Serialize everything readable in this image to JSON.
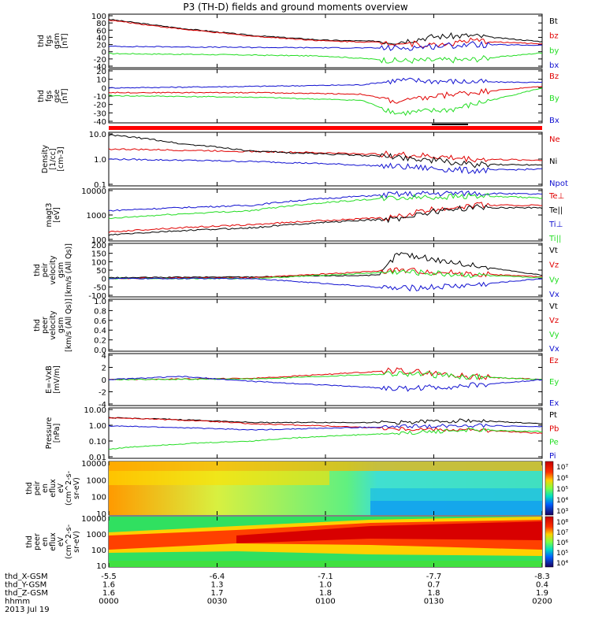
{
  "title": "P3 (TH-D) fields and ground moments overview",
  "colors": {
    "black": "#000000",
    "red": "#e00000",
    "green": "#22dd22",
    "blue": "#1010d0"
  },
  "panels": [
    {
      "id": "fgs-gsm",
      "ylabel": [
        "thd",
        "fgs",
        "gsm",
        "[nT]"
      ],
      "yticks": [
        "100",
        "80",
        "60",
        "40",
        "20",
        "0",
        "-20",
        "-40"
      ],
      "ymin": -40,
      "ymax": 100,
      "legend": [
        {
          "label": "Bt",
          "color": "black"
        },
        {
          "label": "bz",
          "color": "red"
        },
        {
          "label": "by",
          "color": "green"
        },
        {
          "label": "bx",
          "color": "blue"
        }
      ]
    },
    {
      "id": "fgs-gse",
      "ylabel": [
        "thd",
        "fgs",
        "gse",
        "[nT]"
      ],
      "yticks": [
        "20",
        "10",
        "0",
        "-10",
        "-20",
        "-30",
        "-40"
      ],
      "ymin": -45,
      "ymax": 20,
      "legend": [
        {
          "label": "Bz",
          "color": "red"
        },
        {
          "label": "By",
          "color": "green"
        },
        {
          "label": "Bx",
          "color": "blue"
        }
      ]
    },
    {
      "id": "density",
      "ylabel": [
        "Density",
        "[1/cc]",
        "[cm-3]"
      ],
      "yticks": [
        "10.0",
        "1.0",
        "0.1"
      ],
      "log": true,
      "ymin": 0.1,
      "ymax": 10,
      "legend": [
        {
          "label": "Ne",
          "color": "red"
        },
        {
          "label": "Ni",
          "color": "black"
        },
        {
          "label": "Npot",
          "color": "blue"
        }
      ]
    },
    {
      "id": "temperature",
      "ylabel": [
        "magt3",
        "[eV]"
      ],
      "yticks": [
        "10000",
        "1000",
        "100"
      ],
      "log": true,
      "ymin": 100,
      "ymax": 10000,
      "legend": [
        {
          "label": "Te⊥",
          "color": "red"
        },
        {
          "label": "Te||",
          "color": "black"
        },
        {
          "label": "Ti⊥",
          "color": "blue"
        },
        {
          "label": "Ti||",
          "color": "green"
        }
      ]
    },
    {
      "id": "peir-velocity",
      "ylabel": [
        "thd",
        "peir",
        "velocity",
        "gsm",
        "[km/s (All Qs)]"
      ],
      "yticks": [
        "200",
        "150",
        "100",
        "50",
        "0",
        "-50",
        "-100"
      ],
      "ymin": -100,
      "ymax": 200,
      "legend": [
        {
          "label": "Vt",
          "color": "black"
        },
        {
          "label": "Vz",
          "color": "red"
        },
        {
          "label": "Vy",
          "color": "green"
        },
        {
          "label": "Vx",
          "color": "blue"
        }
      ]
    },
    {
      "id": "peer-velocity",
      "ylabel": [
        "thd",
        "peer",
        "velocity",
        "gsm",
        "[km/s (All Qs)]"
      ],
      "yticks": [
        "1.0",
        "0.8",
        "0.6",
        "0.4",
        "0.2",
        "0.0"
      ],
      "ymin": 0,
      "ymax": 1,
      "legend": [
        {
          "label": "Vt",
          "color": "black"
        },
        {
          "label": "Vz",
          "color": "red"
        },
        {
          "label": "Vy",
          "color": "green"
        },
        {
          "label": "Vx",
          "color": "blue"
        }
      ]
    },
    {
      "id": "efield",
      "ylabel": [
        "E=-VxB",
        "[mV/m]"
      ],
      "yticks": [
        "4",
        "2",
        "0",
        "-2",
        "-4"
      ],
      "ymin": -4,
      "ymax": 4,
      "legend": [
        {
          "label": "Ez",
          "color": "red"
        },
        {
          "label": "Ey",
          "color": "green"
        },
        {
          "label": "Ex",
          "color": "blue"
        }
      ]
    },
    {
      "id": "pressure",
      "ylabel": [
        "Pressure",
        "[nPa]"
      ],
      "yticks": [
        "10.00",
        "1.00",
        "0.10",
        "0.01"
      ],
      "log": true,
      "ymin": 0.01,
      "ymax": 10,
      "legend": [
        {
          "label": "Pt",
          "color": "black"
        },
        {
          "label": "Pb",
          "color": "red"
        },
        {
          "label": "Pe",
          "color": "green"
        },
        {
          "label": "Pi",
          "color": "blue"
        }
      ]
    },
    {
      "id": "peir-spectrogram",
      "ylabel": [
        "thd",
        "peir",
        "en",
        "eflux",
        "eV",
        "(cm^2-s-",
        "sr-eV)"
      ],
      "yticks": [
        "10000",
        "1000",
        "100",
        "10"
      ],
      "cbar_ticks": [
        "10⁷",
        "10⁶",
        "10⁵",
        "10⁴",
        "10³"
      ]
    },
    {
      "id": "peer-spectrogram",
      "ylabel": [
        "thd",
        "peer",
        "en",
        "eflux",
        "eV",
        "(cm^2-s-",
        "sr-eV)"
      ],
      "yticks": [
        "10000",
        "1000",
        "100",
        "10"
      ],
      "cbar_ticks": [
        "10⁸",
        "10⁷",
        "10⁶",
        "10⁵",
        "10⁴"
      ]
    }
  ],
  "xaxis": {
    "rows": [
      {
        "label": "thd_X-GSM",
        "values": [
          "-5.5",
          "-6.4",
          "-7.1",
          "-7.7",
          "-8.3"
        ]
      },
      {
        "label": "thd_Y-GSM",
        "values": [
          "1.6",
          "1.3",
          "1.0",
          "0.7",
          "0.4"
        ]
      },
      {
        "label": "thd_Z-GSM",
        "values": [
          "1.6",
          "1.7",
          "1.8",
          "1.8",
          "1.9"
        ]
      },
      {
        "label": "hhmm",
        "values": [
          "0000",
          "0030",
          "0100",
          "0130",
          "0200"
        ]
      }
    ],
    "date": "2013 Jul 19"
  },
  "chart_data": {
    "type": "line",
    "title": "P3 (TH-D) fields and ground moments overview",
    "x_time_range": [
      "0000",
      "0200"
    ],
    "x_ticks": [
      "0000",
      "0030",
      "0100",
      "0130",
      "0200"
    ],
    "panels": [
      {
        "name": "thd fgs gsm [nT]",
        "ylim": [
          -40,
          100
        ],
        "series": [
          {
            "name": "Bt",
            "points": [
              [
                0,
                90
              ],
              [
                20,
                65
              ],
              [
                40,
                45
              ],
              [
                60,
                32
              ],
              [
                80,
                28
              ],
              [
                90,
                42
              ],
              [
                100,
                45
              ],
              [
                120,
                28
              ]
            ]
          },
          {
            "name": "bz",
            "points": [
              [
                0,
                88
              ],
              [
                20,
                63
              ],
              [
                40,
                43
              ],
              [
                60,
                30
              ],
              [
                80,
                25
              ],
              [
                90,
                18
              ],
              [
                100,
                30
              ],
              [
                120,
                22
              ]
            ]
          },
          {
            "name": "by",
            "points": [
              [
                0,
                -5
              ],
              [
                30,
                -8
              ],
              [
                60,
                -12
              ],
              [
                80,
                -25
              ],
              [
                100,
                -22
              ],
              [
                120,
                -3
              ]
            ]
          },
          {
            "name": "bx",
            "points": [
              [
                0,
                15
              ],
              [
                40,
                12
              ],
              [
                80,
                10
              ],
              [
                100,
                20
              ],
              [
                120,
                18
              ]
            ]
          }
        ]
      },
      {
        "name": "thd fgs gse [nT]",
        "ylim": [
          -45,
          20
        ],
        "series": [
          {
            "name": "Bz",
            "points": [
              [
                0,
                -8
              ],
              [
                40,
                -8
              ],
              [
                70,
                -10
              ],
              [
                80,
                -20
              ],
              [
                95,
                -10
              ],
              [
                120,
                0
              ]
            ]
          },
          {
            "name": "By",
            "points": [
              [
                0,
                -12
              ],
              [
                40,
                -14
              ],
              [
                70,
                -18
              ],
              [
                80,
                -35
              ],
              [
                95,
                -30
              ],
              [
                120,
                -2
              ]
            ]
          },
          {
            "name": "Bx",
            "points": [
              [
                0,
                -2
              ],
              [
                40,
                0
              ],
              [
                70,
                2
              ],
              [
                80,
                8
              ],
              [
                100,
                6
              ],
              [
                120,
                5
              ]
            ]
          }
        ]
      },
      {
        "name": "Density [1/cc]",
        "ylim": [
          0.1,
          10
        ],
        "series": [
          {
            "name": "Ne",
            "points": [
              [
                0,
                2.5
              ],
              [
                40,
                2.0
              ],
              [
                80,
                1.5
              ],
              [
                100,
                1.0
              ],
              [
                120,
                0.9
              ]
            ]
          },
          {
            "name": "Ni",
            "points": [
              [
                0,
                9
              ],
              [
                20,
                4
              ],
              [
                40,
                2
              ],
              [
                80,
                1.2
              ],
              [
                100,
                0.6
              ],
              [
                120,
                0.6
              ]
            ]
          },
          {
            "name": "Npot",
            "points": [
              [
                0,
                1.0
              ],
              [
                40,
                0.8
              ],
              [
                80,
                0.5
              ],
              [
                100,
                0.35
              ],
              [
                120,
                0.4
              ]
            ]
          }
        ]
      },
      {
        "name": "magt3 [eV]",
        "ylim": [
          100,
          10000
        ],
        "series": [
          {
            "name": "Te⊥",
            "points": [
              [
                0,
                200
              ],
              [
                40,
                400
              ],
              [
                80,
                800
              ],
              [
                100,
                2500
              ],
              [
                120,
                2500
              ]
            ]
          },
          {
            "name": "Te||",
            "points": [
              [
                0,
                150
              ],
              [
                40,
                300
              ],
              [
                80,
                700
              ],
              [
                100,
                2000
              ],
              [
                120,
                2000
              ]
            ]
          },
          {
            "name": "Ti⊥",
            "points": [
              [
                0,
                1500
              ],
              [
                40,
                2500
              ],
              [
                80,
                7000
              ],
              [
                100,
                8000
              ],
              [
                120,
                7000
              ]
            ]
          },
          {
            "name": "Ti||",
            "points": [
              [
                0,
                700
              ],
              [
                40,
                1500
              ],
              [
                80,
                5000
              ],
              [
                100,
                6000
              ],
              [
                120,
                5000
              ]
            ]
          }
        ]
      },
      {
        "name": "thd peir velocity gsm [km/s]",
        "ylim": [
          -100,
          200
        ],
        "series": [
          {
            "name": "Vt",
            "points": [
              [
                0,
                5
              ],
              [
                40,
                10
              ],
              [
                75,
                20
              ],
              [
                80,
                150
              ],
              [
                100,
                80
              ],
              [
                120,
                20
              ]
            ]
          },
          {
            "name": "Vz",
            "points": [
              [
                0,
                0
              ],
              [
                40,
                5
              ],
              [
                80,
                50
              ],
              [
                100,
                30
              ],
              [
                120,
                10
              ]
            ]
          },
          {
            "name": "Vy",
            "points": [
              [
                0,
                0
              ],
              [
                40,
                0
              ],
              [
                80,
                40
              ],
              [
                100,
                20
              ],
              [
                120,
                5
              ]
            ]
          },
          {
            "name": "Vx",
            "points": [
              [
                0,
                0
              ],
              [
                40,
                0
              ],
              [
                80,
                -60
              ],
              [
                100,
                -40
              ],
              [
                120,
                0
              ]
            ]
          }
        ]
      },
      {
        "name": "thd peer velocity gsm [km/s]",
        "ylim": [
          0,
          1
        ],
        "series": []
      },
      {
        "name": "E=-VxB [mV/m]",
        "ylim": [
          -4,
          4
        ],
        "series": [
          {
            "name": "Ez",
            "points": [
              [
                0,
                0
              ],
              [
                40,
                0.2
              ],
              [
                80,
                1.5
              ],
              [
                100,
                0.5
              ],
              [
                120,
                0
              ]
            ]
          },
          {
            "name": "Ey",
            "points": [
              [
                0,
                0
              ],
              [
                40,
                0.1
              ],
              [
                80,
                1.0
              ],
              [
                100,
                0.5
              ],
              [
                120,
                0
              ]
            ]
          },
          {
            "name": "Ex",
            "points": [
              [
                0,
                0
              ],
              [
                20,
                0.5
              ],
              [
                40,
                -0.3
              ],
              [
                80,
                -1.5
              ],
              [
                100,
                -1.0
              ],
              [
                120,
                0
              ]
            ]
          }
        ]
      },
      {
        "name": "Pressure [nPa]",
        "ylim": [
          0.01,
          10
        ],
        "series": [
          {
            "name": "Pt",
            "points": [
              [
                0,
                3
              ],
              [
                40,
                1.5
              ],
              [
                80,
                1.5
              ],
              [
                100,
                2
              ],
              [
                120,
                1.2
              ]
            ]
          },
          {
            "name": "Pb",
            "points": [
              [
                0,
                3
              ],
              [
                40,
                1.2
              ],
              [
                80,
                0.6
              ],
              [
                100,
                0.5
              ],
              [
                120,
                0.3
              ]
            ]
          },
          {
            "name": "Pe",
            "points": [
              [
                0,
                0.03
              ],
              [
                40,
                0.1
              ],
              [
                80,
                0.3
              ],
              [
                100,
                0.5
              ],
              [
                120,
                0.4
              ]
            ]
          },
          {
            "name": "Pi",
            "points": [
              [
                0,
                0.9
              ],
              [
                40,
                0.5
              ],
              [
                80,
                0.8
              ],
              [
                100,
                1.0
              ],
              [
                120,
                0.8
              ]
            ]
          }
        ]
      }
    ]
  }
}
